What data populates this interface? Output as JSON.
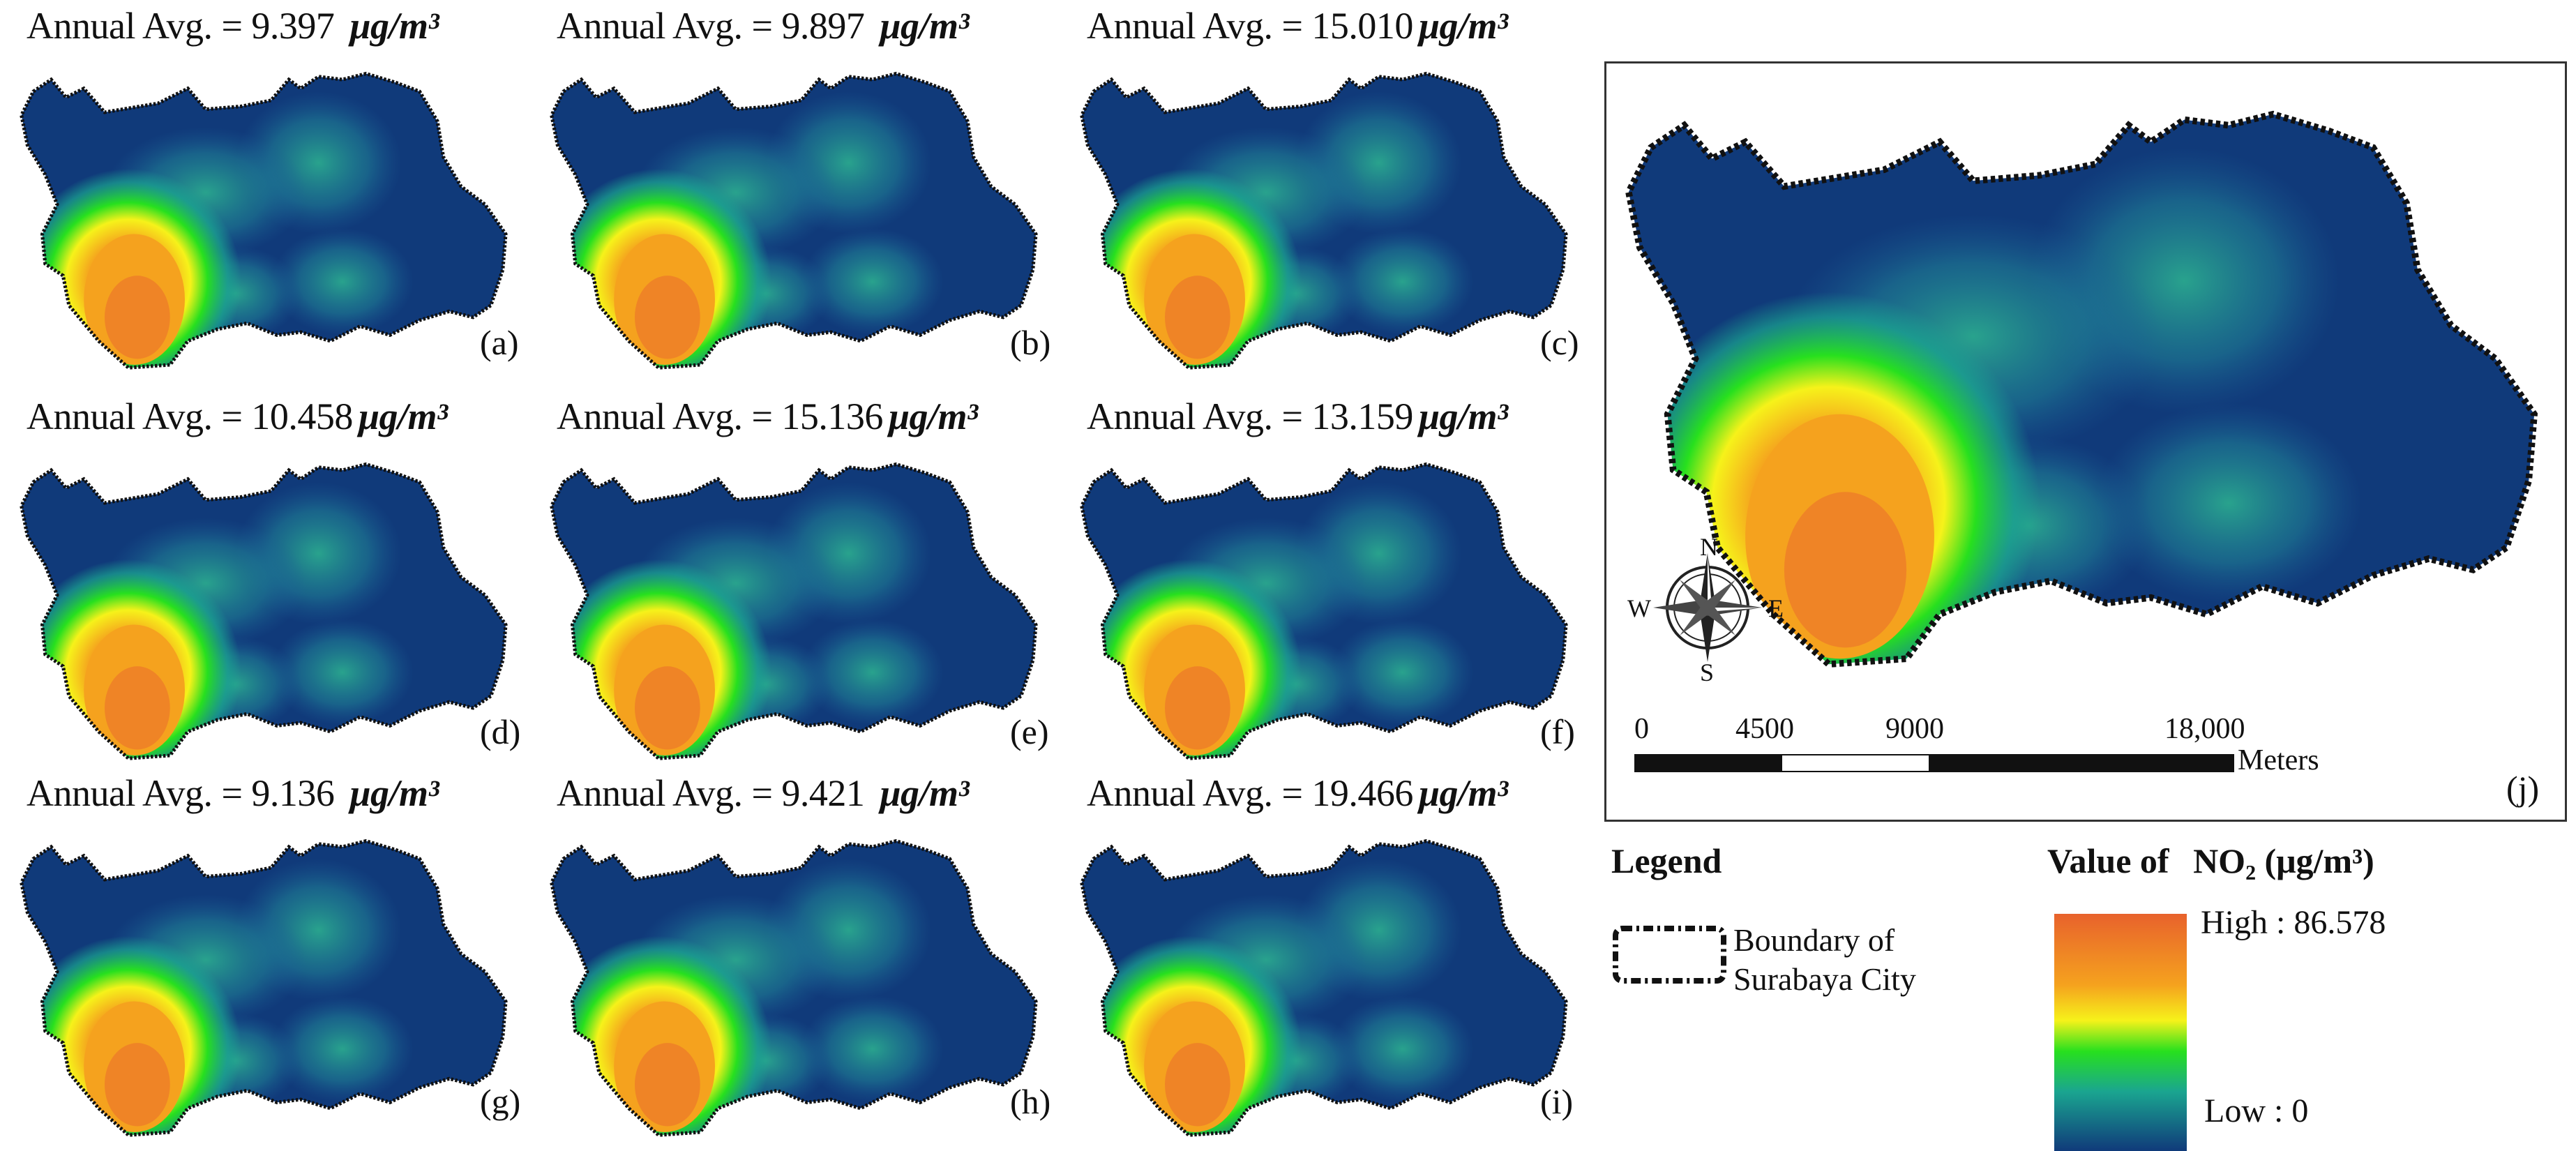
{
  "panels": [
    {
      "id": "a",
      "label": "(a)",
      "avg_text": "Annual Avg. = 9.397",
      "unit": "μg/m³",
      "value": 9.397
    },
    {
      "id": "b",
      "label": "(b)",
      "avg_text": "Annual Avg. = 9.897",
      "unit": "μg/m³",
      "value": 9.897
    },
    {
      "id": "c",
      "label": "(c)",
      "avg_text": "Annual Avg. = 15.010",
      "unit": "μg/m³",
      "value": 15.01
    },
    {
      "id": "d",
      "label": "(d)",
      "avg_text": "Annual Avg. = 10.458",
      "unit": "μg/m³",
      "value": 10.458
    },
    {
      "id": "e",
      "label": "(e)",
      "avg_text": "Annual Avg. = 15.136",
      "unit": "μg/m³",
      "value": 15.136
    },
    {
      "id": "f",
      "label": "(f)",
      "avg_text": "Annual Avg. = 13.159",
      "unit": "μg/m³",
      "value": 13.159
    },
    {
      "id": "g",
      "label": "(g)",
      "avg_text": "Annual Avg. = 9.136",
      "unit": "μg/m³",
      "value": 9.136
    },
    {
      "id": "h",
      "label": "(h)",
      "avg_text": "Annual Avg. = 9.421",
      "unit": "μg/m³",
      "value": 9.421
    },
    {
      "id": "i",
      "label": "(i)",
      "avg_text": "Annual Avg. = 19.466",
      "unit": "μg/m³",
      "value": 19.466
    }
  ],
  "main_map": {
    "label": "(j)",
    "compass": {
      "n": "N",
      "s": "S",
      "e": "E",
      "w": "W"
    },
    "scale": {
      "ticks": [
        "0",
        "4500",
        "9000",
        "18,000"
      ],
      "unit": "Meters"
    }
  },
  "legend": {
    "title": "Legend",
    "boundary_text_1": "Boundary of",
    "boundary_text_2": "Surabaya City",
    "value_title": "Value of",
    "value_pollutant": "NO₂ (μg/m³)",
    "high": "High : 86.578",
    "low": "Low : 0",
    "colors": {
      "low": "#103a7a",
      "mid": "#1aa590",
      "green": "#27e01e",
      "yellow": "#f6f21a",
      "orange": "#f5a21e",
      "high": "#e8622c"
    }
  }
}
